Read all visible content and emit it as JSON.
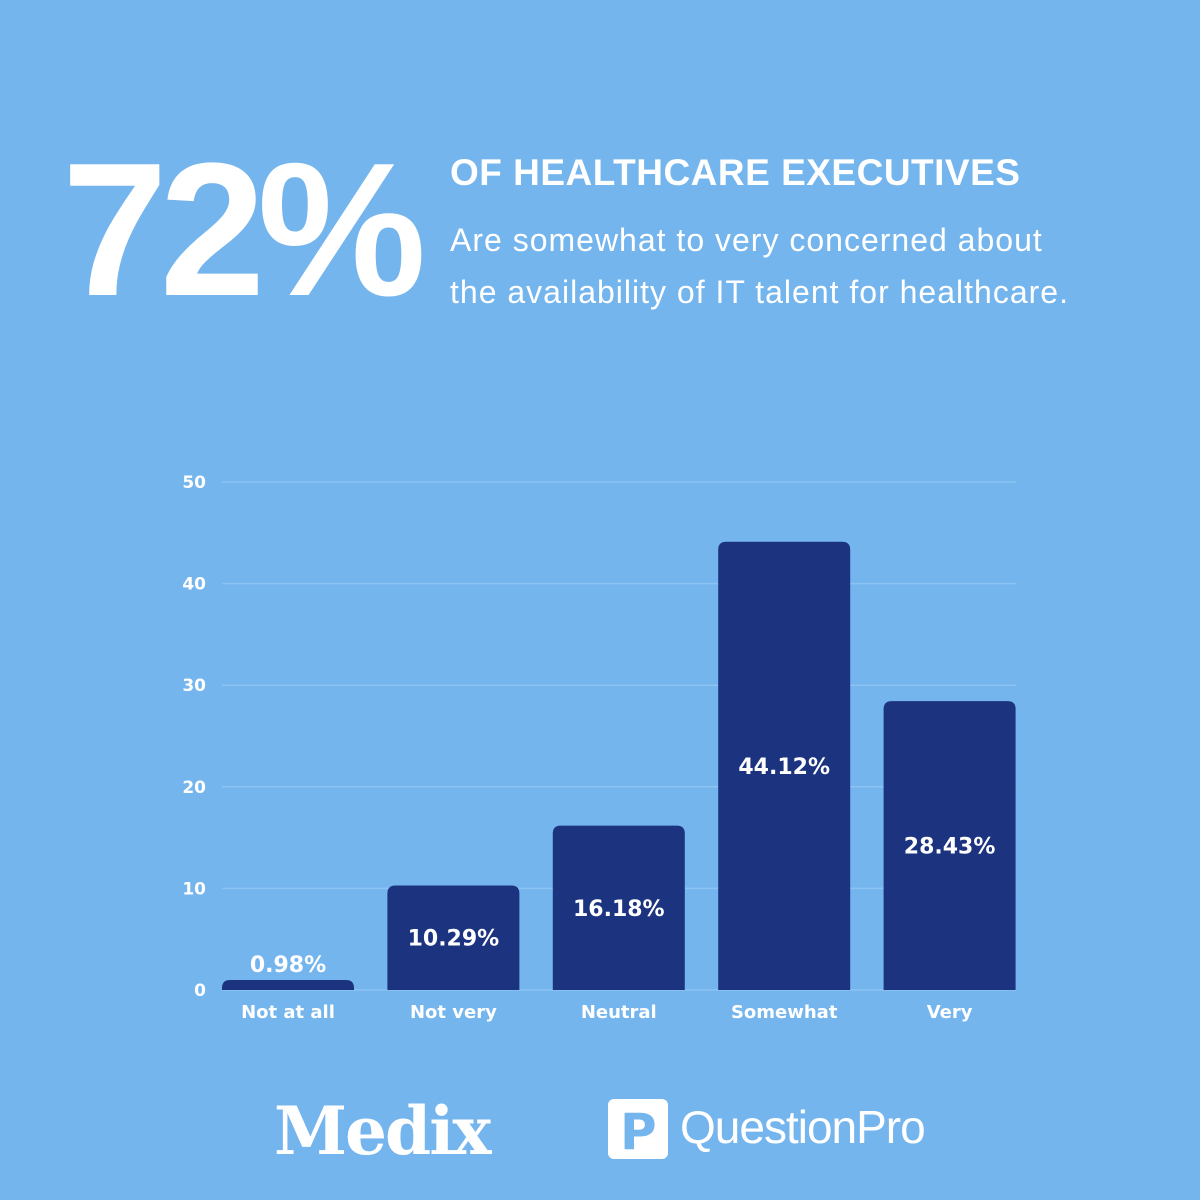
{
  "headline": {
    "stat": "72%",
    "title": "OF HEALTHCARE EXECUTIVES",
    "subtitle_line1": "Are somewhat to very concerned about",
    "subtitle_line2": "the availability of IT talent for healthcare."
  },
  "colors": {
    "background": "#75b5ed",
    "bar": "#1c3380",
    "grid": "#8cc3f2"
  },
  "chart_data": {
    "type": "bar",
    "title": "",
    "xlabel": "",
    "ylabel": "",
    "categories": [
      "Not at all",
      "Not very",
      "Neutral",
      "Somewhat",
      "Very"
    ],
    "values": [
      0.98,
      10.29,
      16.18,
      44.12,
      28.43
    ],
    "data_labels": [
      "0.98%",
      "10.29%",
      "16.18%",
      "44.12%",
      "28.43%"
    ],
    "ylim": [
      0,
      50
    ],
    "yticks": [
      0,
      10,
      20,
      30,
      40,
      50
    ],
    "grid": true
  },
  "footer": {
    "logo_medix": "Medix",
    "logo_questionpro": "QuestionPro",
    "questionpro_mark": "P"
  }
}
